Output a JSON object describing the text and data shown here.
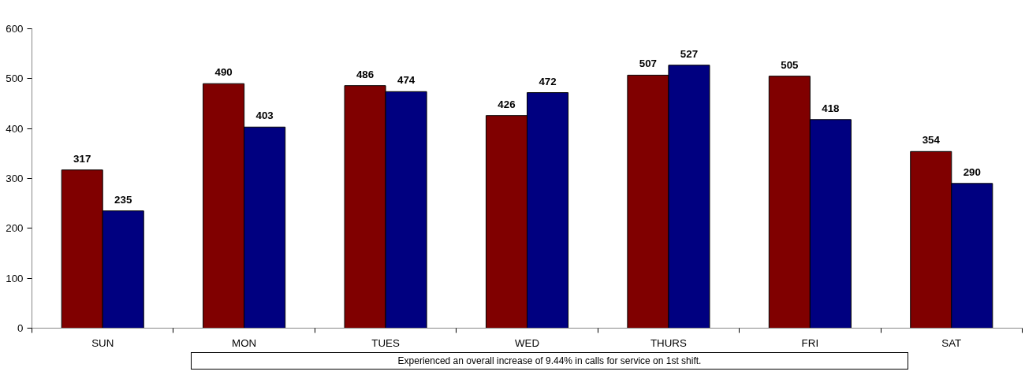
{
  "chart_data": {
    "type": "bar",
    "categories": [
      "SUN",
      "MON",
      "TUES",
      "WED",
      "THURS",
      "FRI",
      "SAT"
    ],
    "series": [
      {
        "color": "#800000",
        "values": [
          317,
          490,
          486,
          426,
          507,
          505,
          354
        ]
      },
      {
        "color": "#000080",
        "values": [
          235,
          403,
          474,
          472,
          527,
          418,
          290
        ]
      }
    ],
    "ylim": [
      0,
      600
    ],
    "yticks": [
      0,
      100,
      200,
      300,
      400,
      500,
      600
    ],
    "data_labels": true,
    "grid": false,
    "annotations": [
      "Experienced an overall increase of 9.44% in calls for service on 1st shift."
    ]
  }
}
